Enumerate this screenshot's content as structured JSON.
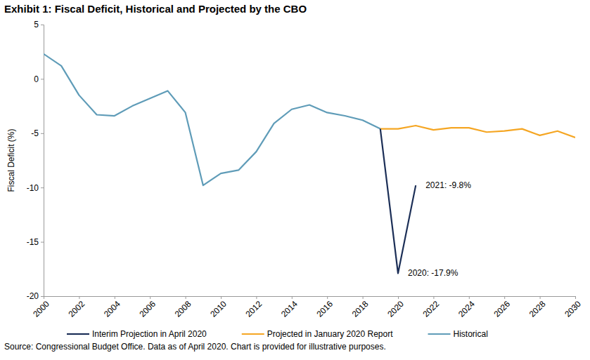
{
  "chart_data": {
    "type": "line",
    "title": "Exhibit 1: Fiscal Deficit, Historical and Projected by the CBO",
    "y_label": "Fiscal Deficit (%)",
    "source": "Source: Congressional Budget Office. Data as of April 2020. Chart is provided for illustrative purposes.",
    "x": [
      2000,
      2001,
      2002,
      2003,
      2004,
      2005,
      2006,
      2007,
      2008,
      2009,
      2010,
      2011,
      2012,
      2013,
      2014,
      2015,
      2016,
      2017,
      2018,
      2019,
      2020,
      2021,
      2022,
      2023,
      2024,
      2025,
      2026,
      2027,
      2028,
      2029,
      2030
    ],
    "series": [
      {
        "name": "Interim Projection in April 2020",
        "color": "#1c2f57",
        "values": [
          null,
          null,
          null,
          null,
          null,
          null,
          null,
          null,
          null,
          null,
          null,
          null,
          null,
          null,
          null,
          null,
          null,
          null,
          null,
          -4.6,
          -17.9,
          -9.8,
          null,
          null,
          null,
          null,
          null,
          null,
          null,
          null,
          null
        ]
      },
      {
        "name": "Projected in January 2020 Report",
        "color": "#f5a623",
        "values": [
          null,
          null,
          null,
          null,
          null,
          null,
          null,
          null,
          null,
          null,
          null,
          null,
          null,
          null,
          null,
          null,
          null,
          null,
          null,
          -4.6,
          -4.6,
          -4.3,
          -4.7,
          -4.5,
          -4.5,
          -4.9,
          -4.8,
          -4.6,
          -5.2,
          -4.8,
          -5.4
        ]
      },
      {
        "name": "Historical",
        "color": "#5f9cb8",
        "values": [
          2.3,
          1.2,
          -1.5,
          -3.3,
          -3.4,
          -2.5,
          -1.8,
          -1.1,
          -3.1,
          -9.8,
          -8.7,
          -8.4,
          -6.7,
          -4.1,
          -2.8,
          -2.4,
          -3.1,
          -3.4,
          -3.8,
          -4.6,
          null,
          null,
          null,
          null,
          null,
          null,
          null,
          null,
          null,
          null,
          null
        ]
      }
    ],
    "annotations": [
      {
        "text": "2021: -9.8%",
        "x": 2021,
        "y": -9.8
      },
      {
        "text": "2020: -17.9%",
        "x": 2020,
        "y": -17.9
      }
    ],
    "xlim": [
      2000,
      2030
    ],
    "xticks": [
      2000,
      2002,
      2004,
      2006,
      2008,
      2010,
      2012,
      2014,
      2016,
      2018,
      2020,
      2022,
      2024,
      2026,
      2028,
      2030
    ],
    "ylim": [
      -20,
      5
    ],
    "yticks": [
      -20,
      -15,
      -10,
      -5,
      0,
      5
    ],
    "grid": false,
    "legend": "bottom"
  }
}
